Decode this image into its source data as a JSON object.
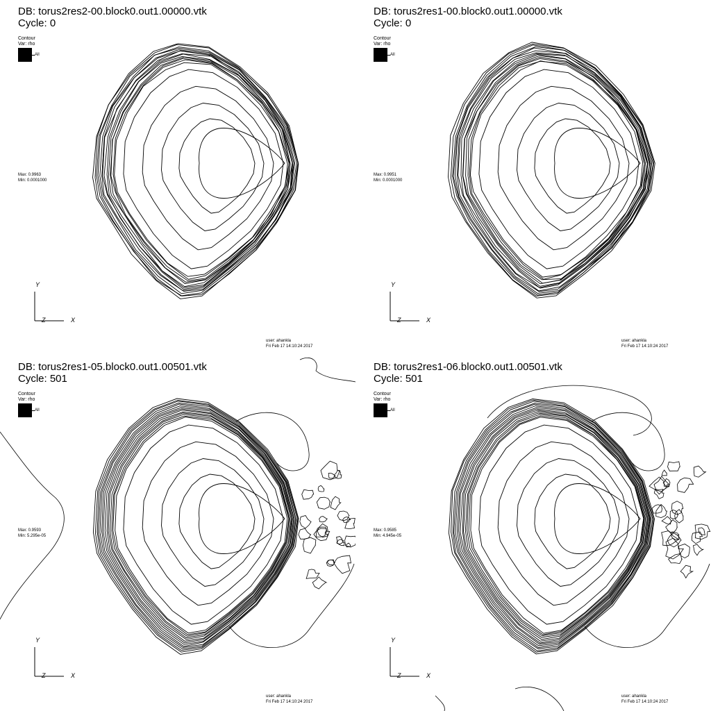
{
  "panels": [
    {
      "db": "DB: torus2res2-00.block0.out1.00000.vtk",
      "cycle": "Cycle: 0",
      "legend_title": "Contour",
      "legend_var": "Var: rho",
      "legend_entry": "All",
      "max": "Max: 0.9963",
      "min": "Min: 0.0001000",
      "user": "user: ahankla",
      "date": "Fri Feb 17 14:10:24 2017",
      "axes": {
        "y": "Y",
        "z": "Z",
        "x": "X"
      },
      "turbulent": false
    },
    {
      "db": "DB: torus2res1-00.block0.out1.00000.vtk",
      "cycle": "Cycle: 0",
      "legend_title": "Contour",
      "legend_var": "Var: rho",
      "legend_entry": "All",
      "max": "Max: 0.9951",
      "min": "Min: 0.0001000",
      "user": "user: ahankla",
      "date": "Fri Feb 17 14:10:24 2017",
      "axes": {
        "y": "Y",
        "z": "Z",
        "x": "X"
      },
      "turbulent": false
    },
    {
      "db": "DB: torus2res1-05.block0.out1.00501.vtk",
      "cycle": "Cycle: 501",
      "legend_title": "Contour",
      "legend_var": "Var: rho",
      "legend_entry": "All",
      "max": "Max: 0.9593",
      "min": "Min: 5.295e-05",
      "user": "user: ahankla",
      "date": "Fri Feb 17 14:10:24 2017",
      "axes": {
        "y": "Y",
        "z": "Z",
        "x": "X"
      },
      "turbulent": true
    },
    {
      "db": "DB: torus2res1-06.block0.out1.00501.vtk",
      "cycle": "Cycle: 501",
      "legend_title": "Contour",
      "legend_var": "Var: rho",
      "legend_entry": "All",
      "max": "Max: 0.9585",
      "min": "Min: 4.945e-05",
      "user": "user: ahankla",
      "date": "Fri Feb 17 14:10:24 2017",
      "axes": {
        "y": "Y",
        "z": "Z",
        "x": "X"
      },
      "turbulent": true
    }
  ]
}
